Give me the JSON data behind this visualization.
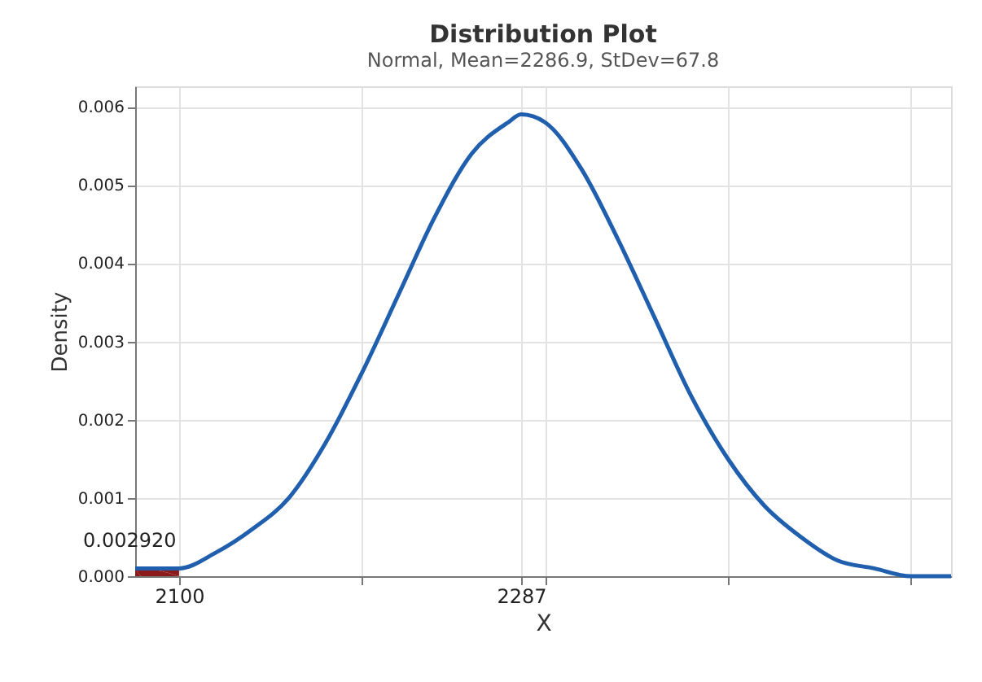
{
  "chart_data": {
    "type": "line",
    "title": "Distribution Plot",
    "subtitle": "Normal, Mean=2286.9, StDev=67.8",
    "xlabel": "X",
    "ylabel": "Density",
    "x": [
      2076,
      2080,
      2100,
      2120,
      2140,
      2160,
      2180,
      2200,
      2220,
      2240,
      2260,
      2280,
      2287,
      2300,
      2320,
      2340,
      2360,
      2380,
      2400,
      2420,
      2440,
      2460,
      2480,
      2500,
      2522
    ],
    "series": [
      {
        "type": "area",
        "color": "#8b1a1a",
        "x": [
          2076,
          2080,
          2100
        ],
        "values": [
          0.0001,
          0.0001,
          0.0001
        ]
      },
      {
        "color": "#1f5fad",
        "values": [
          0.0001,
          0.0001,
          0.0001,
          0.0003,
          0.0006,
          0.001,
          0.0017,
          0.0026,
          0.0036,
          0.0046,
          0.0054,
          0.0058,
          0.0059,
          0.0058,
          0.0052,
          0.0043,
          0.0033,
          0.0023,
          0.0015,
          0.0009,
          0.0005,
          0.0002,
          0.0001,
          0.0,
          0.0
        ]
      }
    ],
    "annotations": [
      "0.002920"
    ],
    "xlim": [
      2076,
      2522
    ],
    "xticks": [
      {
        "value": 2100,
        "label": "2100"
      },
      {
        "value": 2200,
        "label": null
      },
      {
        "value": 2287,
        "label": "2287"
      },
      {
        "value": 2300,
        "label": null
      },
      {
        "value": 2400,
        "label": null
      },
      {
        "value": 2500,
        "label": null
      }
    ],
    "ylim": [
      0,
      0.00626
    ],
    "yticks": [
      {
        "value": 0,
        "label": "0.000"
      },
      {
        "value": 0.001,
        "label": "0.001"
      },
      {
        "value": 0.002,
        "label": "0.002"
      },
      {
        "value": 0.003,
        "label": "0.003"
      },
      {
        "value": 0.004,
        "label": "0.004"
      },
      {
        "value": 0.005,
        "label": "0.005"
      },
      {
        "value": 0.006,
        "label": "0.006"
      }
    ],
    "grid": true,
    "legend": false,
    "marker": "none",
    "line_style": "solid"
  }
}
